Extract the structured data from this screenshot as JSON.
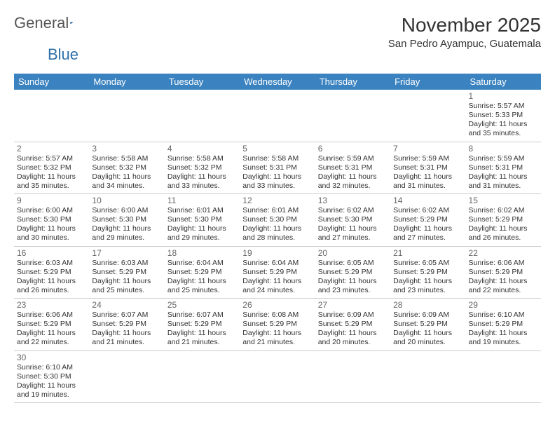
{
  "logo": {
    "text1": "General",
    "text2": "Blue",
    "flag_color": "#2f6fa8"
  },
  "title": "November 2025",
  "location": "San Pedro Ayampuc, Guatemala",
  "header_bg": "#3b83c0",
  "weekdays": [
    "Sunday",
    "Monday",
    "Tuesday",
    "Wednesday",
    "Thursday",
    "Friday",
    "Saturday"
  ],
  "first_weekday_index": 6,
  "days": [
    {
      "n": 1,
      "sunrise": "5:57 AM",
      "sunset": "5:33 PM",
      "dl_h": 11,
      "dl_m": 35
    },
    {
      "n": 2,
      "sunrise": "5:57 AM",
      "sunset": "5:32 PM",
      "dl_h": 11,
      "dl_m": 35
    },
    {
      "n": 3,
      "sunrise": "5:58 AM",
      "sunset": "5:32 PM",
      "dl_h": 11,
      "dl_m": 34
    },
    {
      "n": 4,
      "sunrise": "5:58 AM",
      "sunset": "5:32 PM",
      "dl_h": 11,
      "dl_m": 33
    },
    {
      "n": 5,
      "sunrise": "5:58 AM",
      "sunset": "5:31 PM",
      "dl_h": 11,
      "dl_m": 33
    },
    {
      "n": 6,
      "sunrise": "5:59 AM",
      "sunset": "5:31 PM",
      "dl_h": 11,
      "dl_m": 32
    },
    {
      "n": 7,
      "sunrise": "5:59 AM",
      "sunset": "5:31 PM",
      "dl_h": 11,
      "dl_m": 31
    },
    {
      "n": 8,
      "sunrise": "5:59 AM",
      "sunset": "5:31 PM",
      "dl_h": 11,
      "dl_m": 31
    },
    {
      "n": 9,
      "sunrise": "6:00 AM",
      "sunset": "5:30 PM",
      "dl_h": 11,
      "dl_m": 30
    },
    {
      "n": 10,
      "sunrise": "6:00 AM",
      "sunset": "5:30 PM",
      "dl_h": 11,
      "dl_m": 29
    },
    {
      "n": 11,
      "sunrise": "6:01 AM",
      "sunset": "5:30 PM",
      "dl_h": 11,
      "dl_m": 29
    },
    {
      "n": 12,
      "sunrise": "6:01 AM",
      "sunset": "5:30 PM",
      "dl_h": 11,
      "dl_m": 28
    },
    {
      "n": 13,
      "sunrise": "6:02 AM",
      "sunset": "5:30 PM",
      "dl_h": 11,
      "dl_m": 27
    },
    {
      "n": 14,
      "sunrise": "6:02 AM",
      "sunset": "5:29 PM",
      "dl_h": 11,
      "dl_m": 27
    },
    {
      "n": 15,
      "sunrise": "6:02 AM",
      "sunset": "5:29 PM",
      "dl_h": 11,
      "dl_m": 26
    },
    {
      "n": 16,
      "sunrise": "6:03 AM",
      "sunset": "5:29 PM",
      "dl_h": 11,
      "dl_m": 26
    },
    {
      "n": 17,
      "sunrise": "6:03 AM",
      "sunset": "5:29 PM",
      "dl_h": 11,
      "dl_m": 25
    },
    {
      "n": 18,
      "sunrise": "6:04 AM",
      "sunset": "5:29 PM",
      "dl_h": 11,
      "dl_m": 25
    },
    {
      "n": 19,
      "sunrise": "6:04 AM",
      "sunset": "5:29 PM",
      "dl_h": 11,
      "dl_m": 24
    },
    {
      "n": 20,
      "sunrise": "6:05 AM",
      "sunset": "5:29 PM",
      "dl_h": 11,
      "dl_m": 23
    },
    {
      "n": 21,
      "sunrise": "6:05 AM",
      "sunset": "5:29 PM",
      "dl_h": 11,
      "dl_m": 23
    },
    {
      "n": 22,
      "sunrise": "6:06 AM",
      "sunset": "5:29 PM",
      "dl_h": 11,
      "dl_m": 22
    },
    {
      "n": 23,
      "sunrise": "6:06 AM",
      "sunset": "5:29 PM",
      "dl_h": 11,
      "dl_m": 22
    },
    {
      "n": 24,
      "sunrise": "6:07 AM",
      "sunset": "5:29 PM",
      "dl_h": 11,
      "dl_m": 21
    },
    {
      "n": 25,
      "sunrise": "6:07 AM",
      "sunset": "5:29 PM",
      "dl_h": 11,
      "dl_m": 21
    },
    {
      "n": 26,
      "sunrise": "6:08 AM",
      "sunset": "5:29 PM",
      "dl_h": 11,
      "dl_m": 21
    },
    {
      "n": 27,
      "sunrise": "6:09 AM",
      "sunset": "5:29 PM",
      "dl_h": 11,
      "dl_m": 20
    },
    {
      "n": 28,
      "sunrise": "6:09 AM",
      "sunset": "5:29 PM",
      "dl_h": 11,
      "dl_m": 20
    },
    {
      "n": 29,
      "sunrise": "6:10 AM",
      "sunset": "5:29 PM",
      "dl_h": 11,
      "dl_m": 19
    },
    {
      "n": 30,
      "sunrise": "6:10 AM",
      "sunset": "5:30 PM",
      "dl_h": 11,
      "dl_m": 19
    }
  ]
}
